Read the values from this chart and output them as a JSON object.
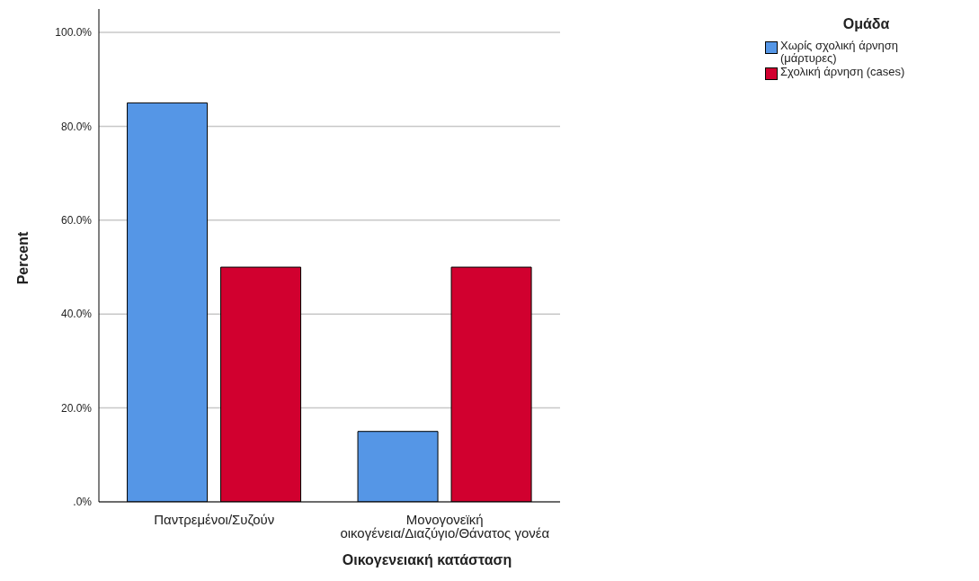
{
  "chart_data": {
    "type": "bar",
    "xlabel": "Οικογενειακή κατάσταση",
    "ylabel": "Percent",
    "legend_title": "Ομάδα",
    "legend": "top right",
    "grid": "y",
    "categories": [
      "Παντρεμένοι/Συζούν",
      "Μονογονεϊκή οικογένεια/Διαζύγιο/Θάνατος γονέα"
    ],
    "series": [
      {
        "name": "Χωρίς σχολική άρνηση (μάρτυρες)",
        "color": "#5596e6",
        "values": [
          85,
          15
        ]
      },
      {
        "name": "Σχολική άρνηση (cases)",
        "color": "#d1002f",
        "values": [
          50,
          50
        ]
      }
    ],
    "ylim": [
      0,
      105
    ],
    "yticks": [
      {
        "value": 0,
        "label": ".0%"
      },
      {
        "value": 20,
        "label": "20.0%"
      },
      {
        "value": 40,
        "label": "40.0%"
      },
      {
        "value": 60,
        "label": "60.0%"
      },
      {
        "value": 80,
        "label": "80.0%"
      },
      {
        "value": 100,
        "label": "100.0%"
      }
    ]
  }
}
